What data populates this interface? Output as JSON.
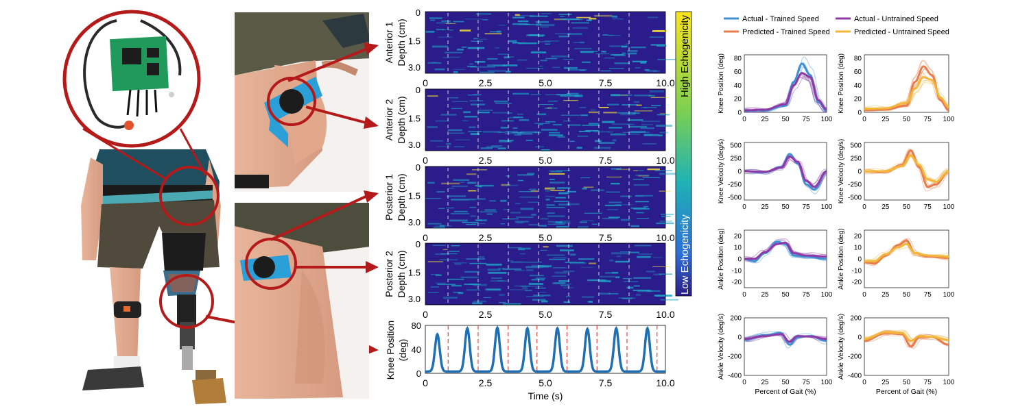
{
  "ultrasound": {
    "panels": [
      {
        "label": "Anterior 1"
      },
      {
        "label": "Anterior 2"
      },
      {
        "label": "Posterior 1"
      },
      {
        "label": "Posterior 2"
      }
    ],
    "depth_label": "Depth (cm)",
    "depth_ticks": [
      "0",
      "1.5",
      "3.0"
    ],
    "time_ticks": [
      "0",
      "2.5",
      "5.0",
      "7.5",
      "10.0"
    ],
    "colorbar_high": "High Echogenicity",
    "colorbar_low": "Low Echogenicity",
    "colors": {
      "low": "#2a1c8a",
      "mid": "#1fa6c9",
      "high": "#f7e13a"
    }
  },
  "knee_trace": {
    "ylabel_line1": "Knee Position",
    "ylabel_line2": "(deg)",
    "xlabel": "Time (s)",
    "y_ticks": [
      "0",
      "40",
      "80"
    ],
    "x_ticks": [
      "0",
      "2.5",
      "5.0",
      "7.5",
      "10.0"
    ],
    "peak_times_s": [
      0.5,
      1.75,
      3.0,
      4.25,
      5.5,
      6.75,
      7.95,
      9.25
    ],
    "peak_values_deg": [
      62,
      72,
      73,
      72,
      72,
      71,
      72,
      72
    ],
    "gait_boundaries_s": [
      0.95,
      2.2,
      3.45,
      4.65,
      5.9,
      7.15,
      8.4,
      9.65
    ],
    "colors": {
      "trace": "#1f6fb2",
      "boundary": "#e0463c"
    }
  },
  "legend": {
    "items": [
      {
        "label": "Actual - Trained Speed",
        "color": "#3f8fd2"
      },
      {
        "label": "Actual - Untrained Speed",
        "color": "#8e3aa6"
      },
      {
        "label": "Predicted - Trained Speed",
        "color": "#e87c4c"
      },
      {
        "label": "Predicted - Untrained Speed",
        "color": "#f2b63a"
      }
    ]
  },
  "gait_plots": {
    "xlabel": "Percent of Gait (%)",
    "x_ticks": [
      "0",
      "25",
      "50",
      "75",
      "100"
    ],
    "rows": [
      {
        "ylabel": "Knee Position (deg)",
        "ticks": [
          "0",
          "20",
          "40",
          "60",
          "80"
        ]
      },
      {
        "ylabel": "Knee Velocity (deg/s)",
        "ticks": [
          "-500",
          "-250",
          "0",
          "250",
          "500"
        ]
      },
      {
        "ylabel": "Ankle Position (deg)",
        "ticks": [
          "-20",
          "-10",
          "0",
          "10",
          "20"
        ]
      },
      {
        "ylabel": "Ankle Velocity (deg/s)",
        "ticks": [
          "-400",
          "-200",
          "0",
          "200"
        ]
      }
    ]
  },
  "chart_data": [
    {
      "type": "line",
      "description_source": "knee position time series",
      "xlabel": "Time (s)",
      "ylabel": "Knee Position (deg)",
      "xlim": [
        0,
        10
      ],
      "ylim": [
        0,
        80
      ],
      "peak_times": [
        0.5,
        1.75,
        3.0,
        4.25,
        5.5,
        6.75,
        7.95,
        9.25
      ],
      "peak_values": [
        62,
        72,
        73,
        72,
        72,
        71,
        72,
        72
      ]
    },
    {
      "type": "line",
      "xlabel": "Percent of Gait (%)",
      "ylabel": "Knee Position (deg)",
      "x": [
        0,
        25,
        50,
        60,
        70,
        80,
        90,
        100
      ],
      "series": [
        {
          "name": "Actual - Trained Speed",
          "values": [
            2,
            3,
            10,
            45,
            72,
            55,
            15,
            2
          ]
        },
        {
          "name": "Predicted - Trained Speed",
          "values": [
            3,
            4,
            12,
            40,
            58,
            52,
            18,
            4
          ]
        },
        {
          "name": "Actual - Untrained Speed",
          "values": [
            3,
            4,
            10,
            45,
            68,
            55,
            18,
            3
          ]
        },
        {
          "name": "Predicted - Untrained Speed",
          "values": [
            5,
            6,
            14,
            35,
            52,
            48,
            22,
            8
          ]
        }
      ],
      "ylim": [
        0,
        85
      ]
    },
    {
      "type": "line",
      "xlabel": "Percent of Gait (%)",
      "ylabel": "Knee Velocity (deg/s)",
      "x": [
        0,
        25,
        45,
        55,
        65,
        75,
        85,
        100
      ],
      "series": [
        {
          "name": "Actual - Trained Speed",
          "values": [
            0,
            -20,
            80,
            330,
            150,
            -250,
            -350,
            0
          ]
        },
        {
          "name": "Predicted - Trained Speed",
          "values": [
            0,
            -10,
            70,
            280,
            180,
            -180,
            -300,
            0
          ]
        },
        {
          "name": "Actual - Untrained Speed",
          "values": [
            0,
            -10,
            120,
            400,
            80,
            -300,
            -250,
            0
          ]
        },
        {
          "name": "Predicted - Untrained Speed",
          "values": [
            0,
            0,
            100,
            300,
            120,
            -150,
            -200,
            0
          ]
        }
      ],
      "ylim": [
        -550,
        550
      ]
    },
    {
      "type": "line",
      "xlabel": "Percent of Gait (%)",
      "ylabel": "Ankle Position (deg)",
      "x": [
        0,
        12,
        25,
        40,
        50,
        60,
        75,
        100
      ],
      "series": [
        {
          "name": "Actual - Trained Speed",
          "values": [
            0,
            -2,
            5,
            15,
            13,
            3,
            2,
            0
          ]
        },
        {
          "name": "Predicted - Trained Speed",
          "values": [
            0,
            0,
            6,
            13,
            14,
            5,
            3,
            2
          ]
        },
        {
          "name": "Actual - Untrained Speed",
          "values": [
            -3,
            -4,
            3,
            12,
            16,
            5,
            2,
            1
          ]
        },
        {
          "name": "Predicted - Untrained Speed",
          "values": [
            -2,
            -2,
            4,
            10,
            13,
            5,
            3,
            2
          ]
        }
      ],
      "ylim": [
        -25,
        25
      ]
    },
    {
      "type": "line",
      "xlabel": "Percent of Gait (%)",
      "ylabel": "Ankle Velocity (deg/s)",
      "x": [
        0,
        25,
        45,
        55,
        65,
        80,
        100
      ],
      "series": [
        {
          "name": "Actual - Trained Speed",
          "values": [
            -30,
            20,
            40,
            -80,
            0,
            10,
            -40
          ]
        },
        {
          "name": "Predicted - Trained Speed",
          "values": [
            -20,
            10,
            30,
            -50,
            10,
            5,
            -20
          ]
        },
        {
          "name": "Actual - Untrained Speed",
          "values": [
            -40,
            40,
            30,
            -100,
            0,
            0,
            -80
          ]
        },
        {
          "name": "Predicted - Untrained Speed",
          "values": [
            -20,
            50,
            40,
            -40,
            10,
            0,
            -30
          ]
        }
      ],
      "ylim": [
        -400,
        200
      ]
    }
  ]
}
